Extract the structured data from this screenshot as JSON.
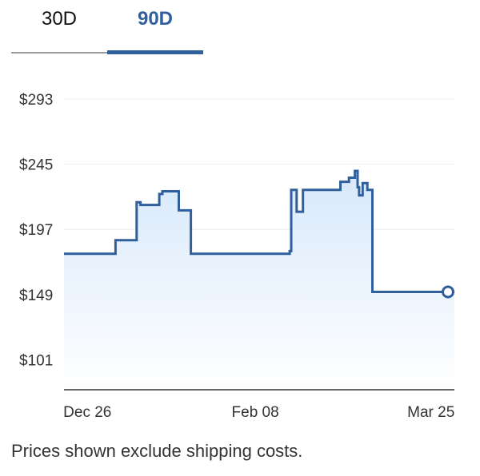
{
  "tabs": {
    "items": [
      {
        "label": "30D",
        "selected": false
      },
      {
        "label": "90D",
        "selected": true
      }
    ]
  },
  "colors": {
    "line": "#2f5f9c",
    "fill_top": "#d7e8fb",
    "active_tab": "#2f5f9c"
  },
  "chart_data": {
    "type": "line",
    "title": "",
    "xlabel": "",
    "ylabel": "",
    "y_tick_labels": [
      "$293",
      "$245",
      "$197",
      "$149",
      "$101"
    ],
    "y_ticks": [
      293,
      245,
      197,
      149,
      101
    ],
    "ylim": [
      79,
      307
    ],
    "x_tick_labels": [
      "Dec 26",
      "Feb 08",
      "Mar 25"
    ],
    "x_ticks": [
      6,
      49,
      94
    ],
    "xlim": [
      0,
      100
    ],
    "grid": true,
    "step": true,
    "series": [
      {
        "points": [
          [
            0,
            179
          ],
          [
            13.2,
            179
          ],
          [
            13.2,
            189
          ],
          [
            18.6,
            189
          ],
          [
            18.6,
            217
          ],
          [
            19.6,
            217
          ],
          [
            19.6,
            215
          ],
          [
            24.4,
            215
          ],
          [
            24.4,
            223
          ],
          [
            25.2,
            223
          ],
          [
            25.2,
            225
          ],
          [
            29.4,
            225
          ],
          [
            29.4,
            211
          ],
          [
            32.5,
            211
          ],
          [
            32.5,
            179
          ],
          [
            57.8,
            179
          ],
          [
            57.8,
            181
          ],
          [
            58.2,
            181
          ],
          [
            58.2,
            226
          ],
          [
            59.6,
            226
          ],
          [
            59.6,
            210
          ],
          [
            61.2,
            210
          ],
          [
            61.2,
            226
          ],
          [
            70.8,
            226
          ],
          [
            70.8,
            232
          ],
          [
            73.0,
            232
          ],
          [
            73.0,
            235
          ],
          [
            74.5,
            235
          ],
          [
            74.5,
            240
          ],
          [
            75.2,
            240
          ],
          [
            75.2,
            228
          ],
          [
            75.6,
            228
          ],
          [
            75.6,
            222
          ],
          [
            76.5,
            222
          ],
          [
            76.5,
            231
          ],
          [
            77.7,
            231
          ],
          [
            77.7,
            226
          ],
          [
            79.0,
            226
          ],
          [
            79.0,
            151
          ],
          [
            100,
            151
          ]
        ]
      }
    ],
    "last_point_marker": true
  },
  "footer": {
    "note": "Prices shown exclude shipping costs."
  }
}
